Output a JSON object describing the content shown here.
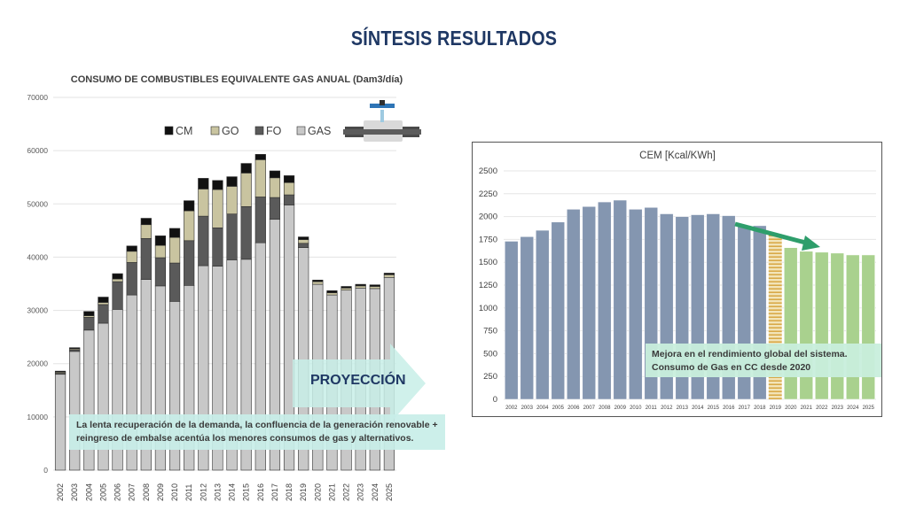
{
  "title": "SÍNTESIS RESULTADOS",
  "footnote": "La lenta recuperación de la demanda, la confluencia de la generación renovable + reingreso de embalse acentúa los menores consumos de gas y alternativos.",
  "projection_label": "PROYECCIÓN",
  "improvement_note": "Mejora en el rendimiento global del sistema. Consumo de Gas en CC desde 2020",
  "colors": {
    "title": "#1f3864",
    "gas": "#c8c8c8",
    "fo": "#5a5a5a",
    "go": "#c9c4a0",
    "cm": "#111111",
    "cem_bar": "#8496b0",
    "cem_projection": "#a9d18e",
    "cem_transition": "#f4b183",
    "arrow": "#2e9e6b",
    "note_bg": "#c8eee8"
  },
  "icons": [
    "pipeline-valve-icon",
    "trend-down-arrow-icon",
    "projection-arrow-icon"
  ],
  "chart_data": [
    {
      "type": "bar",
      "stacked": true,
      "title": "CONSUMO DE COMBUSTIBLES EQUIVALENTE GAS ANUAL (Dam3/día)",
      "categories": [
        "2002",
        "2003",
        "2004",
        "2005",
        "2006",
        "2007",
        "2008",
        "2009",
        "2010",
        "2011",
        "2012",
        "2013",
        "2014",
        "2015",
        "2016",
        "2017",
        "2018",
        "2019",
        "2020",
        "2021",
        "2022",
        "2023",
        "2024",
        "2025"
      ],
      "series": [
        {
          "name": "GAS",
          "values": [
            18000,
            22300,
            26300,
            27600,
            30200,
            32900,
            35800,
            34600,
            31700,
            34700,
            38400,
            38300,
            39500,
            39600,
            42700,
            47100,
            49800,
            41800,
            34900,
            32900,
            33800,
            34200,
            34100,
            36200
          ]
        },
        {
          "name": "FO",
          "values": [
            200,
            300,
            2400,
            3500,
            5200,
            6100,
            7700,
            5300,
            7200,
            8400,
            9300,
            7200,
            8600,
            9900,
            8600,
            4100,
            1900,
            800,
            0,
            0,
            0,
            0,
            0,
            0
          ]
        },
        {
          "name": "GO",
          "values": [
            200,
            200,
            300,
            400,
            500,
            2100,
            2600,
            2300,
            4800,
            5600,
            5100,
            7200,
            5200,
            6300,
            7000,
            3700,
            2300,
            700,
            500,
            400,
            400,
            400,
            400,
            500
          ]
        },
        {
          "name": "CM",
          "values": [
            200,
            200,
            800,
            1000,
            1000,
            1000,
            1200,
            1800,
            1700,
            1900,
            2000,
            1700,
            1800,
            1800,
            1000,
            1300,
            1300,
            500,
            300,
            400,
            300,
            300,
            300,
            300
          ]
        }
      ],
      "legend": [
        "CM",
        "GO",
        "FO",
        "GAS"
      ],
      "legend_position": "top",
      "ylim": [
        0,
        70000
      ],
      "yticks": [
        0,
        10000,
        20000,
        30000,
        40000,
        50000,
        60000,
        70000
      ],
      "grid": true,
      "projection_from": "2020"
    },
    {
      "type": "bar",
      "title": "CEM [Kcal/KWh]",
      "categories": [
        "2002",
        "2003",
        "2004",
        "2005",
        "2006",
        "2007",
        "2008",
        "2009",
        "2010",
        "2011",
        "2012",
        "2013",
        "2014",
        "2015",
        "2016",
        "2017",
        "2018",
        "2019",
        "2020",
        "2021",
        "2022",
        "2023",
        "2024",
        "2025"
      ],
      "values": [
        1730,
        1780,
        1850,
        1940,
        2080,
        2110,
        2160,
        2180,
        2080,
        2100,
        2030,
        2000,
        2020,
        2030,
        2010,
        1900,
        1900,
        1810,
        1660,
        1620,
        1610,
        1600,
        1580,
        1580
      ],
      "ylim": [
        0,
        2500
      ],
      "yticks": [
        0,
        250,
        500,
        750,
        1000,
        1250,
        1500,
        1750,
        2000,
        2250,
        2500
      ],
      "grid": true,
      "transition_year": "2019",
      "projection_from": "2020"
    }
  ]
}
